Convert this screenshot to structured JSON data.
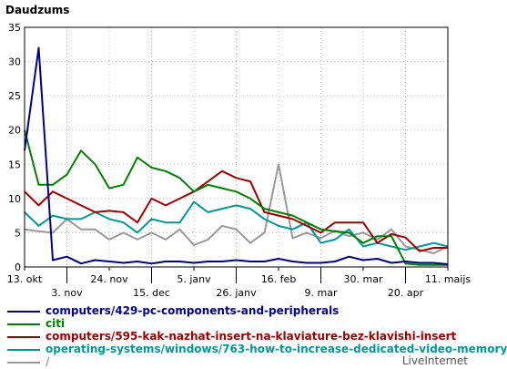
{
  "chart_data": {
    "type": "line",
    "ylabel": "Daudzums",
    "ylim": [
      0,
      35
    ],
    "yticks": [
      0,
      5,
      10,
      15,
      20,
      25,
      30,
      35
    ],
    "grid": true,
    "legend_position": "bottom",
    "x_tick_labels_row1": [
      "13. okt",
      "24. nov",
      "5. janv",
      "16. feb",
      "30. mar",
      "11. maijs"
    ],
    "x_tick_labels_row2": [
      "3. nov",
      "15. dec",
      "26. janv",
      "9. mar",
      "20. apr"
    ],
    "x_tick_positions_row1": [
      0,
      6,
      12,
      18,
      24,
      30
    ],
    "x_tick_positions_row2": [
      3,
      9,
      15,
      21,
      27
    ],
    "x_count": 31,
    "series": [
      {
        "name": "computers/429-pc-components-and-peripherals",
        "color": "#00008b",
        "values": [
          17,
          32,
          1,
          1.5,
          0.5,
          1,
          0.8,
          0.6,
          0.8,
          0.5,
          0.8,
          0.8,
          0.6,
          0.8,
          0.8,
          1,
          0.8,
          0.8,
          1.2,
          0.8,
          0.6,
          0.6,
          0.8,
          1.5,
          1,
          1.2,
          0.6,
          0.8,
          0.6,
          0.6,
          0.4
        ]
      },
      {
        "name": "citi",
        "color": "#008000",
        "values": [
          20,
          12,
          12,
          13.5,
          17,
          15,
          11.5,
          12,
          16,
          14.5,
          14,
          13,
          11,
          12,
          11.5,
          11,
          10,
          8.5,
          8,
          7.5,
          6.5,
          5.5,
          5.2,
          5,
          3.5,
          4.5,
          4.5,
          0.5,
          0.3,
          0.3,
          0.3
        ]
      },
      {
        "name": "computers/595-kak-nazhat-insert-na-klaviature-bez-klavishi-insert",
        "color": "#a00000",
        "values": [
          11,
          9,
          11,
          10,
          9,
          8,
          8.2,
          8,
          6.5,
          10,
          9,
          10,
          11,
          12.5,
          14,
          13,
          12.5,
          8,
          7.5,
          7,
          6,
          5,
          6.5,
          6.5,
          6.5,
          3.5,
          4.8,
          4.3,
          2.3,
          2.8,
          2.8
        ]
      },
      {
        "name": "operating-systems/windows/763-how-to-increase-dedicated-video-memory",
        "color": "#009999",
        "values": [
          8,
          6,
          7.5,
          7,
          7,
          8,
          7,
          6.5,
          5,
          7,
          6.5,
          6.5,
          9.5,
          8,
          8.5,
          9,
          8.5,
          7,
          6,
          5.5,
          6.5,
          3.5,
          4,
          5.5,
          3,
          3.5,
          3,
          2.5,
          3,
          3.5,
          3
        ]
      },
      {
        "name": "/",
        "color": "#999999",
        "values": [
          5.5,
          5.2,
          5,
          7,
          5.5,
          5.5,
          4,
          5,
          4,
          5,
          4,
          5.5,
          3.2,
          4,
          6,
          5.5,
          3.5,
          5,
          15,
          4.2,
          5,
          4.2,
          5.3,
          4.5,
          5,
          4,
          5.5,
          3,
          2.5,
          2,
          3
        ]
      }
    ]
  },
  "credit": "LiveInternet"
}
